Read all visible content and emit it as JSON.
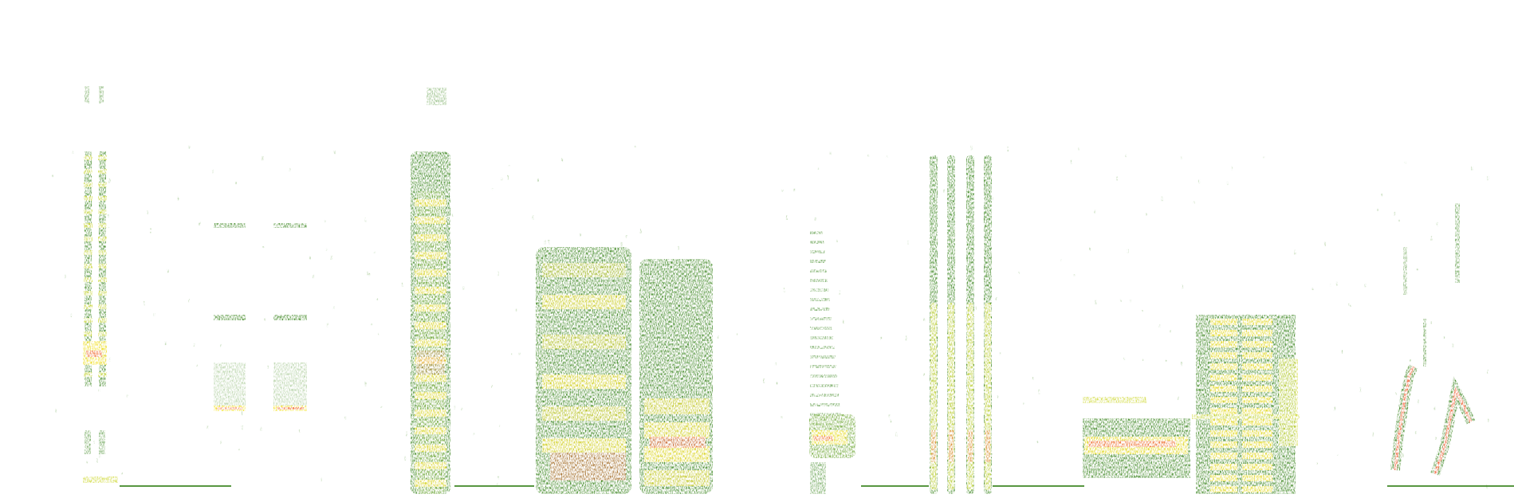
{
  "image": {
    "kind": "spectrogram",
    "background_color": "#ffffff",
    "palette": {
      "low": "#2e7d12",
      "mid_low": "#5a9a1a",
      "mid": "#c9d41e",
      "high": "#f2dc0a",
      "peak": "#f04a1a"
    },
    "signal_groups": [
      "narrow-pulse-train",
      "paired-tonal-bars",
      "broadband-burst",
      "double-broadband-block",
      "low-chirp-burst",
      "four-pulse-cluster",
      "comb-tonal-complex",
      "frequency-sweep-calls"
    ]
  }
}
